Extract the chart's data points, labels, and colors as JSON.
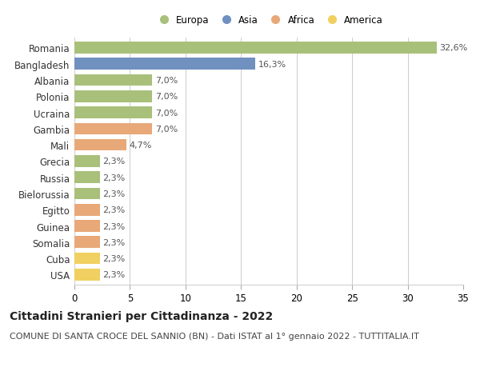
{
  "countries": [
    "Romania",
    "Bangladesh",
    "Albania",
    "Polonia",
    "Ucraina",
    "Gambia",
    "Mali",
    "Grecia",
    "Russia",
    "Bielorussia",
    "Egitto",
    "Guinea",
    "Somalia",
    "Cuba",
    "USA"
  ],
  "values": [
    32.6,
    16.3,
    7.0,
    7.0,
    7.0,
    7.0,
    4.7,
    2.3,
    2.3,
    2.3,
    2.3,
    2.3,
    2.3,
    2.3,
    2.3
  ],
  "labels": [
    "32,6%",
    "16,3%",
    "7,0%",
    "7,0%",
    "7,0%",
    "7,0%",
    "4,7%",
    "2,3%",
    "2,3%",
    "2,3%",
    "2,3%",
    "2,3%",
    "2,3%",
    "2,3%",
    "2,3%"
  ],
  "continents": [
    "Europa",
    "Asia",
    "Europa",
    "Europa",
    "Europa",
    "Africa",
    "Africa",
    "Europa",
    "Europa",
    "Europa",
    "Africa",
    "Africa",
    "Africa",
    "America",
    "America"
  ],
  "continent_colors": {
    "Europa": "#a8c07a",
    "Asia": "#7090c0",
    "Africa": "#e8a878",
    "America": "#f0d060"
  },
  "title": "Cittadini Stranieri per Cittadinanza - 2022",
  "subtitle": "COMUNE DI SANTA CROCE DEL SANNIO (BN) - Dati ISTAT al 1° gennaio 2022 - TUTTITALIA.IT",
  "legend_labels": [
    "Europa",
    "Asia",
    "Africa",
    "America"
  ],
  "legend_colors": [
    "#a8c07a",
    "#7090c0",
    "#e8a878",
    "#f0d060"
  ],
  "xlim": [
    0,
    35
  ],
  "xticks": [
    0,
    5,
    10,
    15,
    20,
    25,
    30,
    35
  ],
  "background_color": "#ffffff",
  "grid_color": "#cccccc",
  "bar_height": 0.72,
  "title_fontsize": 10,
  "subtitle_fontsize": 8,
  "tick_fontsize": 8.5,
  "label_fontsize": 8
}
